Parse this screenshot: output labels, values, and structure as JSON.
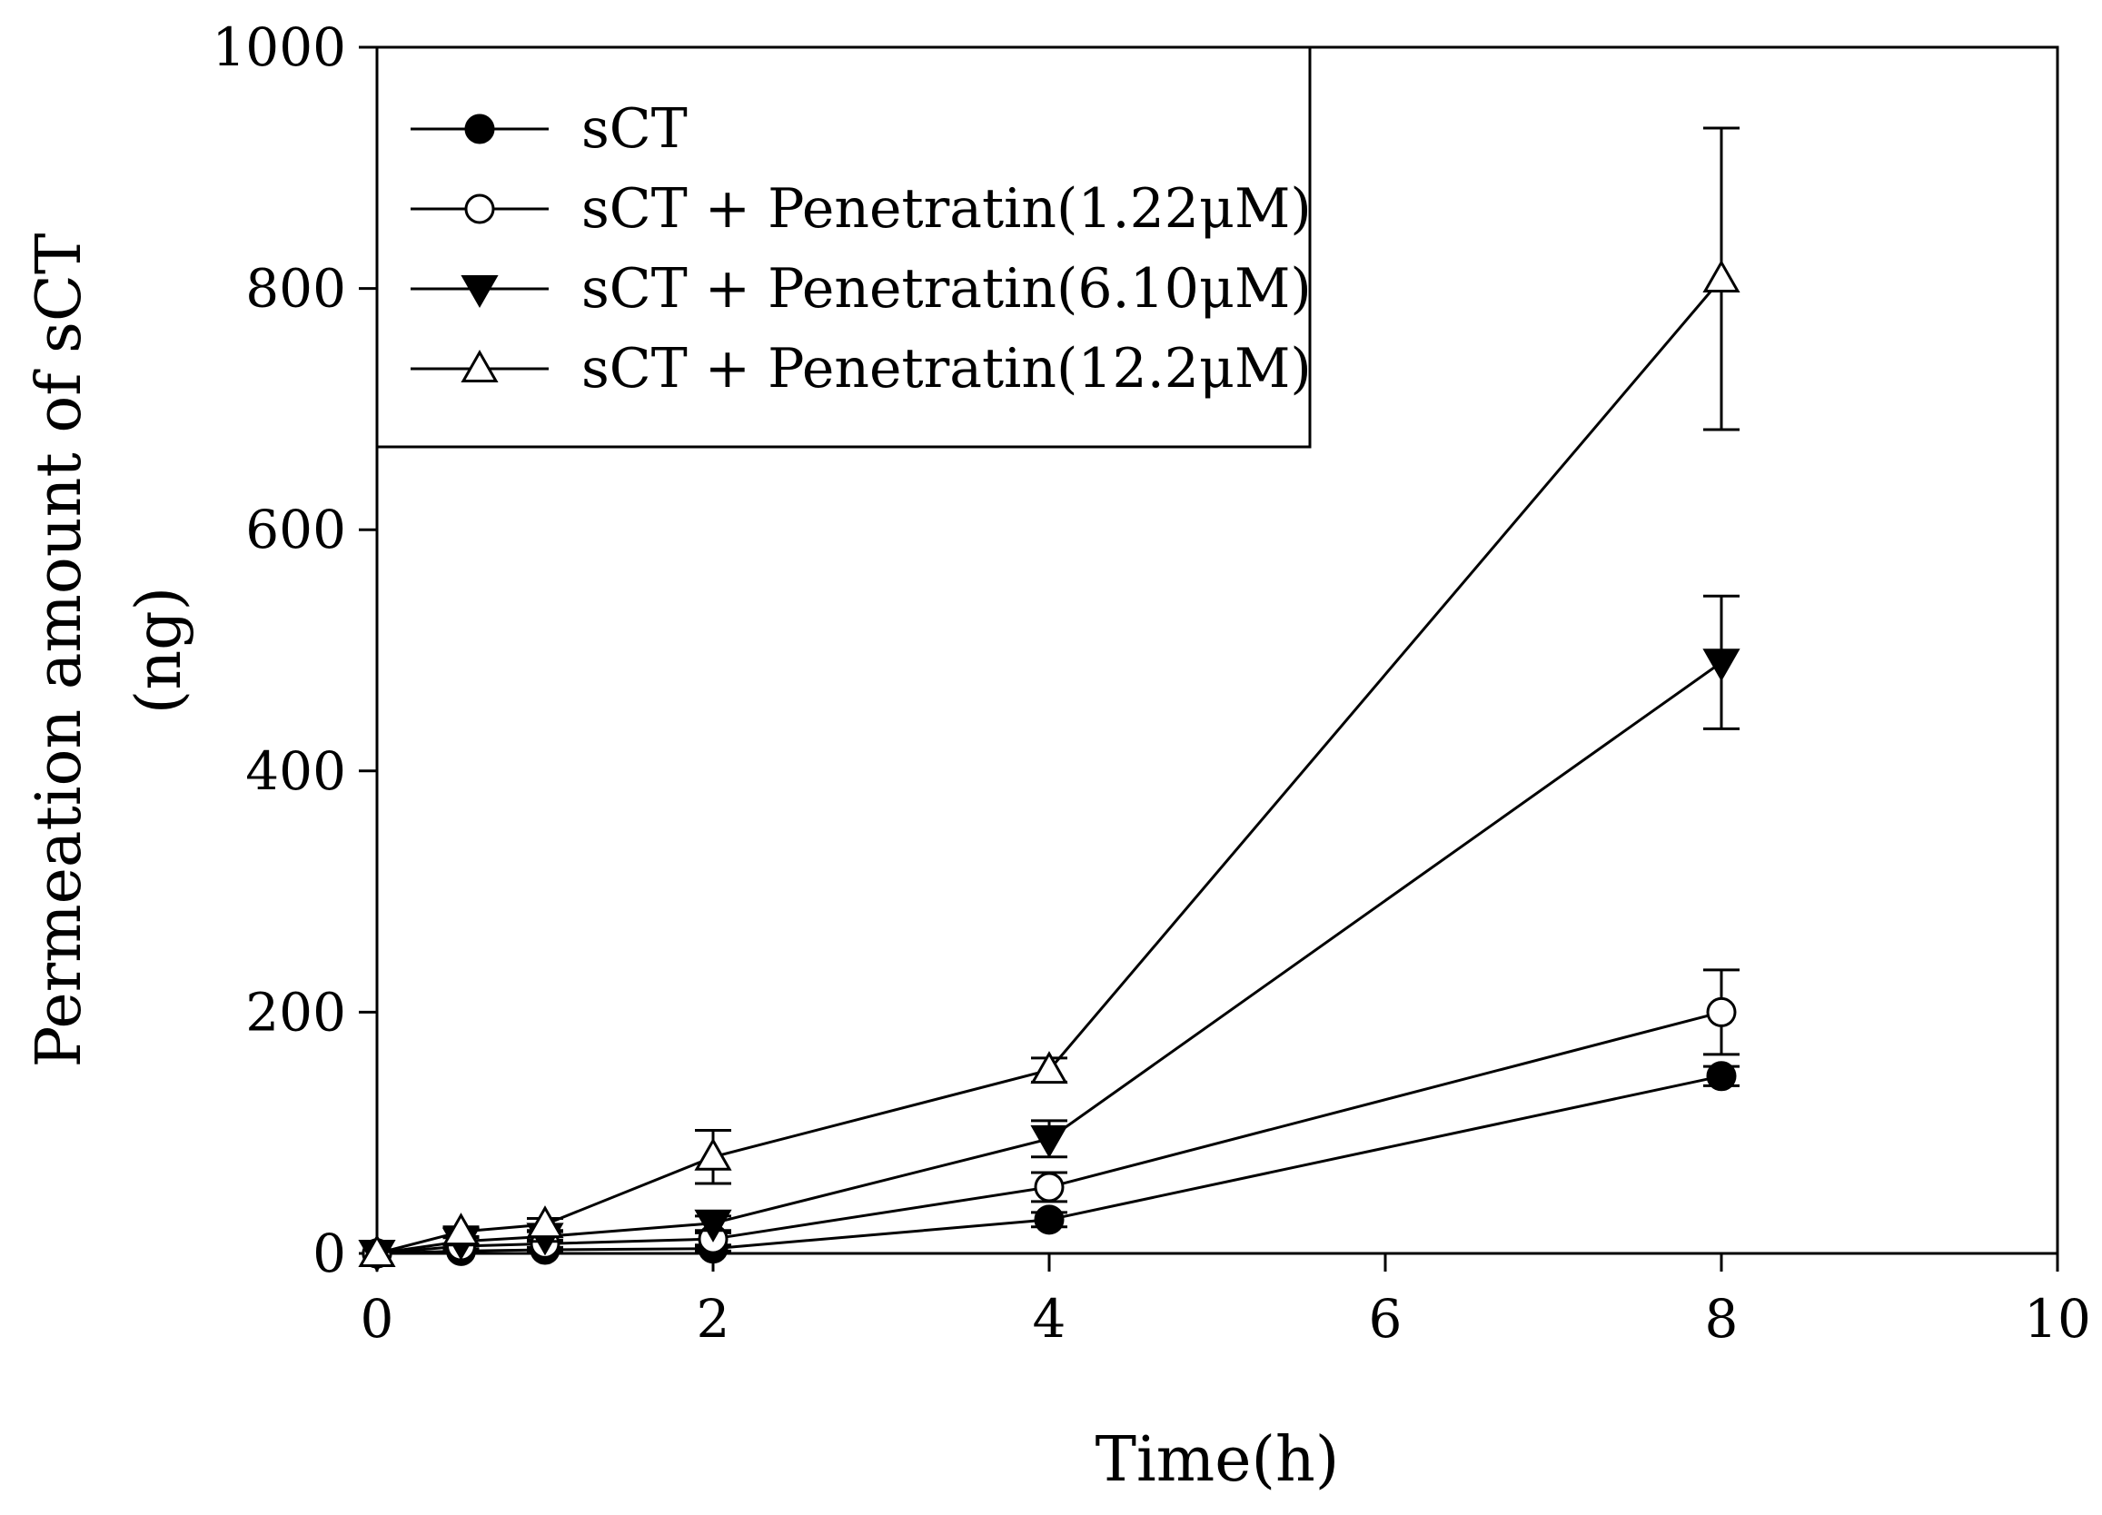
{
  "chart_data": {
    "type": "line",
    "title": "",
    "xlabel": "Time(h)",
    "ylabel_lines": [
      "Permeation amount of sCT",
      "(ng)"
    ],
    "xlim": [
      0,
      10
    ],
    "ylim": [
      0,
      1000
    ],
    "xticks": [
      "0",
      "2",
      "4",
      "6",
      "8",
      "10"
    ],
    "yticks": [
      "0",
      "200",
      "400",
      "600",
      "800",
      "1000"
    ],
    "grid": false,
    "legend_position": "top-left",
    "x": [
      0,
      0.5,
      1,
      2,
      4,
      8
    ],
    "series": [
      {
        "name": "sCT",
        "marker": "circle-filled",
        "values": [
          0,
          2,
          3,
          4,
          28,
          147
        ],
        "errors": [
          0,
          1,
          1,
          2,
          6,
          8
        ]
      },
      {
        "name": "sCT + Penetratin(1.22μM)",
        "marker": "circle-open",
        "values": [
          0,
          6,
          8,
          12,
          55,
          200
        ],
        "errors": [
          0,
          2,
          3,
          5,
          12,
          35
        ]
      },
      {
        "name": "sCT + Penetratin(6.10μM)",
        "marker": "triangle-down-filled",
        "values": [
          0,
          10,
          14,
          25,
          95,
          490
        ],
        "errors": [
          0,
          3,
          4,
          6,
          15,
          55
        ]
      },
      {
        "name": "sCT + Penetratin(12.2μM)",
        "marker": "triangle-up-open",
        "values": [
          0,
          18,
          24,
          80,
          152,
          808
        ],
        "errors": [
          0,
          4,
          5,
          22,
          10,
          125
        ]
      }
    ]
  }
}
